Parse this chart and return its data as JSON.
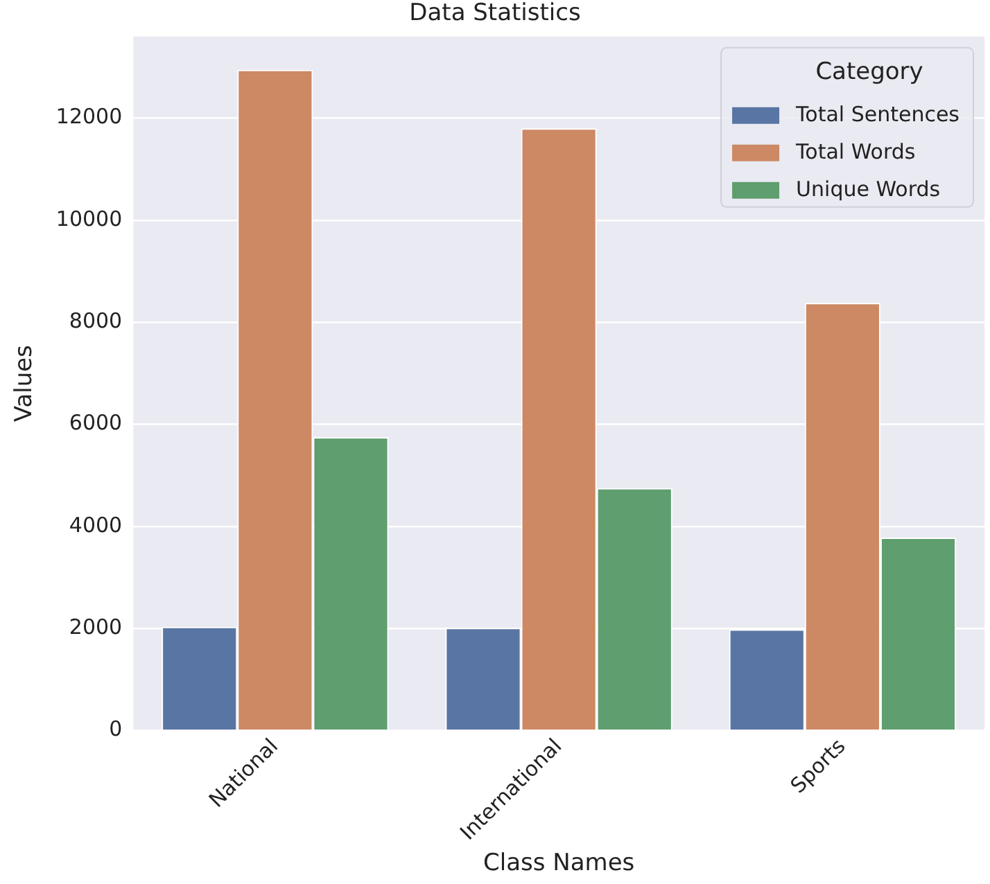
{
  "chart_data": {
    "type": "bar",
    "title": "Data Statistics",
    "xlabel": "Class Names",
    "ylabel": "Values",
    "legend_title": "Category",
    "categories": [
      "National",
      "International",
      "Sports"
    ],
    "series": [
      {
        "name": "Total Sentences",
        "color": "#5975a4",
        "values": [
          2030,
          2010,
          1980
        ]
      },
      {
        "name": "Total Words",
        "color": "#cc8963",
        "values": [
          12950,
          11800,
          8380
        ]
      },
      {
        "name": "Unique Words",
        "color": "#5f9e6e",
        "values": [
          5750,
          4750,
          3780
        ]
      }
    ],
    "ylim": [
      0,
      13600
    ],
    "yticks": [
      0,
      2000,
      4000,
      6000,
      8000,
      10000,
      12000
    ],
    "grid": "y",
    "legend": "top right"
  }
}
